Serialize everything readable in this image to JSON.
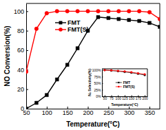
{
  "chart_data": [
    {
      "type": "line",
      "xlabel": "Temperature(°C)",
      "ylabel": "NO Conversion(%)",
      "x": [
        50,
        75,
        100,
        125,
        150,
        175,
        200,
        225,
        250,
        275,
        300,
        325,
        350,
        375
      ],
      "xlim": [
        50,
        375
      ],
      "xticks": [
        50,
        100,
        150,
        200,
        250,
        300,
        350
      ],
      "ylim": [
        0,
        108
      ],
      "yticks": [
        0,
        20,
        40,
        60,
        80,
        100
      ],
      "legend": "upper left",
      "series": [
        {
          "name": "FMT",
          "color": "#000000",
          "marker": "square",
          "values": [
            0,
            6,
            14,
            30,
            45,
            62,
            80,
            94,
            93,
            92,
            91,
            90,
            88,
            84
          ]
        },
        {
          "name": "FMT(S)",
          "color": "#ff0000",
          "marker": "circle",
          "values": [
            38,
            82,
            98,
            100,
            100,
            100,
            100,
            100,
            100,
            100,
            100,
            100,
            99,
            92
          ]
        }
      ]
    },
    {
      "type": "line",
      "xlabel": "Temperature(°C)",
      "ylabel": "N₂ Selectivity(%)",
      "x": [
        50,
        75,
        100,
        125,
        150,
        175,
        200
      ],
      "xlim": [
        40,
        210
      ],
      "xticks": [
        50,
        75,
        100,
        125,
        150,
        175,
        200
      ],
      "ylim": [
        0,
        105
      ],
      "yticks": [
        {
          "value": 0,
          "label": "0%"
        },
        {
          "value": 25,
          "label": "25%"
        },
        {
          "value": 50,
          "label": "50%"
        },
        {
          "value": 75,
          "label": "75%"
        },
        {
          "value": 100,
          "label": "100%"
        }
      ],
      "legend": "center",
      "series": [
        {
          "name": "FMT",
          "color": "#000000",
          "marker": "square",
          "values": [
            100,
            98,
            96,
            93,
            90,
            86,
            81
          ]
        },
        {
          "name": "FMT(S)",
          "color": "#ff0000",
          "marker": "circle",
          "values": [
            100,
            99,
            97,
            95,
            92,
            88,
            84
          ]
        }
      ]
    }
  ]
}
